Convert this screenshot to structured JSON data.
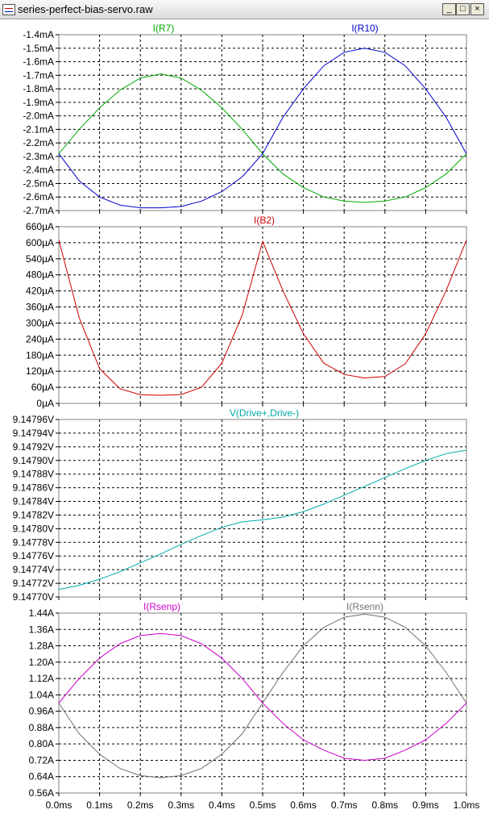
{
  "window": {
    "title": "series-perfect-bias-servo.raw",
    "minimize_glyph": "_",
    "maximize_glyph": "□",
    "close_glyph": "×"
  },
  "x_axis": {
    "ticks": [
      "0.0ms",
      "0.1ms",
      "0.2ms",
      "0.3ms",
      "0.4ms",
      "0.5ms",
      "0.6ms",
      "0.7ms",
      "0.8ms",
      "0.9ms",
      "1.0ms"
    ],
    "range": [
      0,
      1.0
    ],
    "unit": "ms"
  },
  "chart_data": [
    {
      "type": "line",
      "grid": true,
      "ylim": [
        -2.7,
        -1.4
      ],
      "y_ticks": [
        "-1.4mA",
        "-1.5mA",
        "-1.6mA",
        "-1.7mA",
        "-1.8mA",
        "-1.9mA",
        "-2.0mA",
        "-2.1mA",
        "-2.2mA",
        "-2.3mA",
        "-2.4mA",
        "-2.5mA",
        "-2.6mA",
        "-2.7mA"
      ],
      "series": [
        {
          "name": "I(R7)",
          "color": "#00aa00",
          "x": [
            0,
            0.05,
            0.1,
            0.15,
            0.2,
            0.25,
            0.3,
            0.35,
            0.4,
            0.45,
            0.5,
            0.55,
            0.6,
            0.65,
            0.7,
            0.75,
            0.8,
            0.85,
            0.9,
            0.95,
            1.0
          ],
          "values": [
            -2.28,
            -2.1,
            -1.94,
            -1.81,
            -1.72,
            -1.69,
            -1.72,
            -1.81,
            -1.94,
            -2.1,
            -2.28,
            -2.43,
            -2.53,
            -2.6,
            -2.63,
            -2.64,
            -2.63,
            -2.6,
            -2.53,
            -2.43,
            -2.28
          ]
        },
        {
          "name": "I(R10)",
          "color": "#0000cc",
          "x": [
            0,
            0.05,
            0.1,
            0.15,
            0.2,
            0.25,
            0.3,
            0.35,
            0.4,
            0.45,
            0.5,
            0.55,
            0.6,
            0.65,
            0.7,
            0.75,
            0.8,
            0.85,
            0.9,
            0.95,
            1.0
          ],
          "values": [
            -2.28,
            -2.48,
            -2.6,
            -2.66,
            -2.68,
            -2.68,
            -2.67,
            -2.63,
            -2.56,
            -2.45,
            -2.28,
            -2.01,
            -1.8,
            -1.63,
            -1.53,
            -1.5,
            -1.53,
            -1.63,
            -1.8,
            -2.01,
            -2.28
          ]
        }
      ]
    },
    {
      "type": "line",
      "grid": true,
      "ylim": [
        0,
        660
      ],
      "y_ticks": [
        "660µA",
        "600µA",
        "540µA",
        "480µA",
        "420µA",
        "360µA",
        "300µA",
        "240µA",
        "180µA",
        "120µA",
        "60µA",
        "0µA"
      ],
      "series": [
        {
          "name": "I(B2)",
          "color": "#cc0000",
          "x": [
            0,
            0.05,
            0.1,
            0.15,
            0.2,
            0.25,
            0.3,
            0.35,
            0.4,
            0.45,
            0.5,
            0.55,
            0.6,
            0.65,
            0.7,
            0.75,
            0.8,
            0.85,
            0.9,
            0.95,
            1.0
          ],
          "values": [
            610,
            320,
            130,
            55,
            32,
            30,
            33,
            60,
            150,
            330,
            605,
            420,
            260,
            150,
            108,
            95,
            100,
            148,
            260,
            420,
            610
          ]
        }
      ]
    },
    {
      "type": "line",
      "grid": true,
      "ylim": [
        9.1477,
        9.14796
      ],
      "y_ticks": [
        "9.14796V",
        "9.14794V",
        "9.14792V",
        "9.14790V",
        "9.14788V",
        "9.14786V",
        "9.14784V",
        "9.14782V",
        "9.14780V",
        "9.14778V",
        "9.14776V",
        "9.14774V",
        "9.14772V",
        "9.14770V"
      ],
      "series": [
        {
          "name": "V(Drive+,Drive-)",
          "color": "#00aaaa",
          "x": [
            0,
            0.05,
            0.1,
            0.15,
            0.2,
            0.25,
            0.3,
            0.35,
            0.4,
            0.45,
            0.5,
            0.55,
            0.6,
            0.65,
            0.7,
            0.75,
            0.8,
            0.85,
            0.9,
            0.95,
            1.0
          ],
          "values": [
            9.147711,
            9.147717,
            9.147726,
            9.147737,
            9.14775,
            9.147763,
            9.147777,
            9.14779,
            9.147802,
            9.14781,
            9.147813,
            9.147817,
            9.147825,
            9.147836,
            9.147849,
            9.147862,
            9.147875,
            9.147888,
            9.1479,
            9.14791,
            9.147915
          ]
        }
      ]
    },
    {
      "type": "line",
      "grid": true,
      "ylim": [
        0.56,
        1.44
      ],
      "y_ticks": [
        "1.44A",
        "1.36A",
        "1.28A",
        "1.20A",
        "1.12A",
        "1.04A",
        "0.96A",
        "0.88A",
        "0.80A",
        "0.72A",
        "0.64A",
        "0.56A"
      ],
      "series": [
        {
          "name": "I(Rsenp)",
          "color": "#cc00cc",
          "x": [
            0,
            0.05,
            0.1,
            0.15,
            0.2,
            0.25,
            0.3,
            0.35,
            0.4,
            0.45,
            0.5,
            0.55,
            0.6,
            0.65,
            0.7,
            0.75,
            0.8,
            0.85,
            0.9,
            0.95,
            1.0
          ],
          "values": [
            1.0,
            1.12,
            1.22,
            1.29,
            1.33,
            1.34,
            1.33,
            1.29,
            1.22,
            1.12,
            1.0,
            0.9,
            0.82,
            0.77,
            0.73,
            0.72,
            0.73,
            0.77,
            0.82,
            0.9,
            1.0
          ]
        },
        {
          "name": "I(Rsenn)",
          "color": "#707070",
          "x": [
            0,
            0.05,
            0.1,
            0.15,
            0.2,
            0.25,
            0.3,
            0.35,
            0.4,
            0.45,
            0.5,
            0.55,
            0.6,
            0.65,
            0.7,
            0.75,
            0.8,
            0.85,
            0.9,
            0.95,
            1.0
          ],
          "values": [
            1.0,
            0.85,
            0.75,
            0.68,
            0.645,
            0.635,
            0.645,
            0.68,
            0.75,
            0.85,
            1.0,
            1.15,
            1.28,
            1.37,
            1.42,
            1.435,
            1.42,
            1.37,
            1.28,
            1.15,
            1.0
          ]
        }
      ]
    }
  ]
}
